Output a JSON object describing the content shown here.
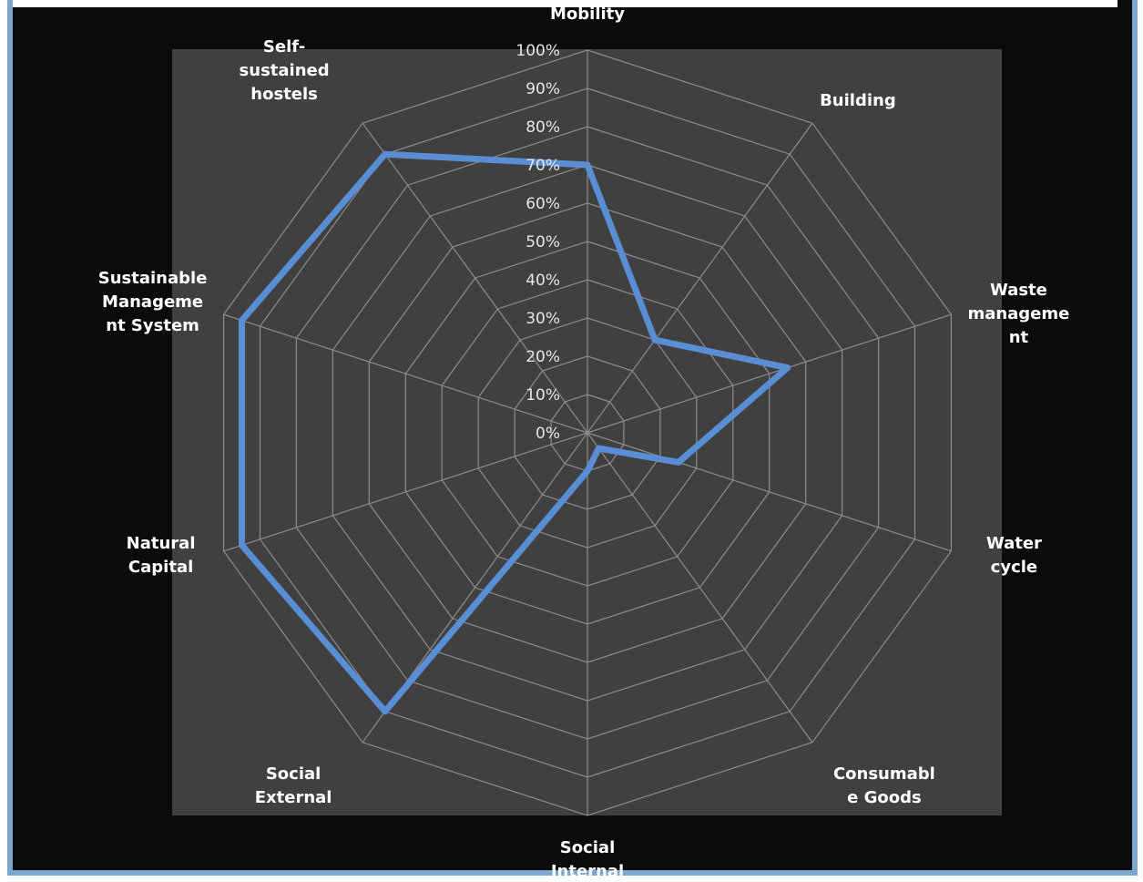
{
  "chart_data": {
    "type": "radar",
    "title": "",
    "categories": [
      "Mobility",
      "Building",
      "Waste management",
      "Water cycle",
      "Consumable Goods",
      "Social Internal",
      "Social External",
      "Natural Capital",
      "Sustainable Management System",
      "Self-sustained hostels"
    ],
    "category_label_lines": [
      [
        "Mobility"
      ],
      [
        "Building"
      ],
      [
        "Waste",
        "manageme",
        "nt"
      ],
      [
        "Water",
        "cycle"
      ],
      [
        "Consumabl",
        "e Goods"
      ],
      [
        "Social",
        "Internal"
      ],
      [
        "Social",
        "External"
      ],
      [
        "Natural",
        "Capital"
      ],
      [
        "Sustainable",
        "Manageme",
        "nt System"
      ],
      [
        "Self-",
        "sustained",
        "hostels"
      ]
    ],
    "tick_labels": [
      "0%",
      "10%",
      "20%",
      "30%",
      "40%",
      "50%",
      "60%",
      "70%",
      "80%",
      "90%",
      "100%"
    ],
    "ylim": [
      0,
      100
    ],
    "series": [
      {
        "values": [
          70,
          30,
          55,
          25,
          5,
          10,
          90,
          95,
          95,
          90
        ],
        "color": "#5a8ed4"
      }
    ],
    "grid": true,
    "colors": {
      "plot_background": "#404040",
      "outer_background": "#0b0b0b",
      "grid": "#8c8c8c"
    }
  }
}
